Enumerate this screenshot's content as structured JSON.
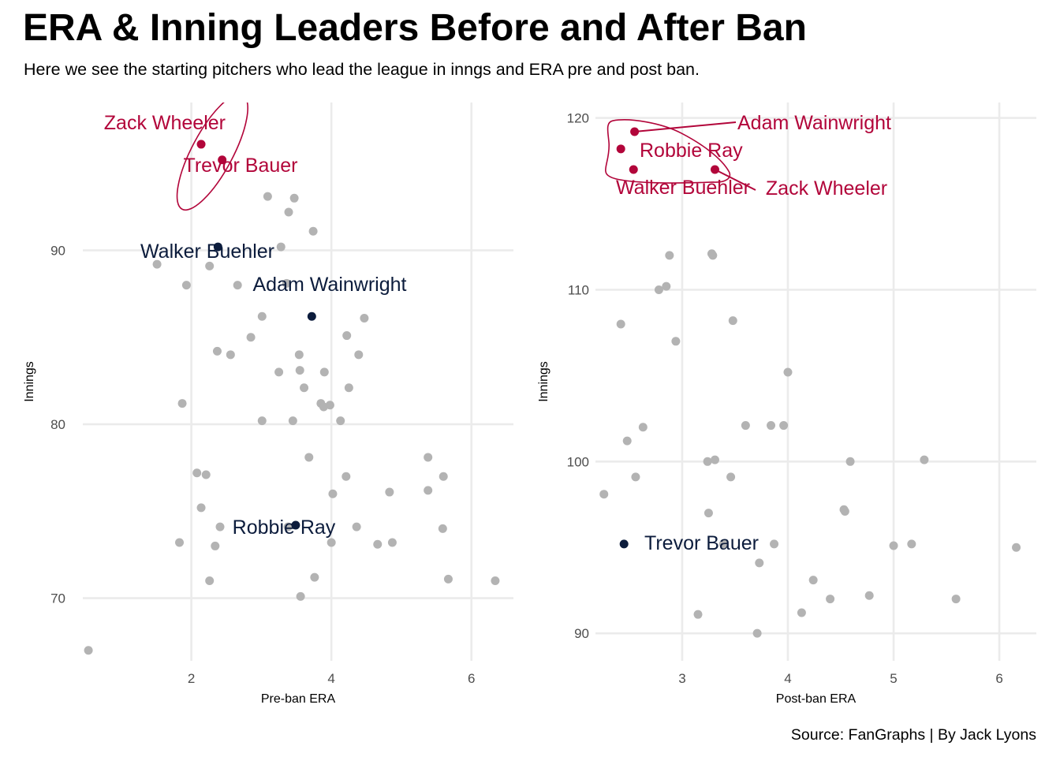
{
  "header": {
    "title": "ERA & Inning Leaders Before and After Ban",
    "subtitle": "Here we see the starting pitchers who lead the league in inngs and ERA pre and post ban."
  },
  "caption": "Source: FanGraphs | By Jack Lyons",
  "colors": {
    "highlight_red": "#b2053a",
    "highlight_navy": "#0c1c3c",
    "other": "#b3b3b3",
    "grid": "#ebebeb"
  },
  "chart_data": [
    {
      "type": "scatter",
      "panel": "left",
      "xlabel": "Pre-ban ERA",
      "ylabel": "Innings",
      "xlim": [
        0.45,
        6.6
      ],
      "ylim": [
        66.4,
        98.5
      ],
      "xticks": [
        2,
        4,
        6
      ],
      "yticks": [
        70,
        80,
        90
      ],
      "grid": true,
      "highlight": [
        {
          "name": "Zack Wheeler",
          "x": 2.14,
          "y": 96.1,
          "group": "red"
        },
        {
          "name": "Trevor Bauer",
          "x": 2.44,
          "y": 95.2,
          "group": "red"
        },
        {
          "name": "Walker Buehler",
          "x": 2.38,
          "y": 90.2,
          "group": "navy"
        },
        {
          "name": "Adam Wainwright",
          "x": 3.72,
          "y": 86.2,
          "group": "navy"
        },
        {
          "name": "Robbie Ray",
          "x": 3.49,
          "y": 74.2,
          "group": "navy"
        }
      ],
      "others": [
        [
          3.09,
          93.1
        ],
        [
          3.47,
          93.0
        ],
        [
          3.39,
          92.2
        ],
        [
          3.74,
          91.1
        ],
        [
          3.28,
          90.2
        ],
        [
          1.51,
          89.2
        ],
        [
          2.26,
          89.1
        ],
        [
          1.93,
          88.0
        ],
        [
          2.66,
          88.0
        ],
        [
          3.36,
          88.1
        ],
        [
          3.01,
          86.2
        ],
        [
          4.47,
          86.1
        ],
        [
          2.85,
          85.0
        ],
        [
          4.22,
          85.1
        ],
        [
          2.37,
          84.2
        ],
        [
          2.56,
          84.0
        ],
        [
          3.54,
          84.0
        ],
        [
          4.39,
          84.0
        ],
        [
          3.25,
          83.0
        ],
        [
          3.55,
          83.1
        ],
        [
          3.9,
          83.0
        ],
        [
          3.61,
          82.1
        ],
        [
          4.25,
          82.1
        ],
        [
          1.87,
          81.2
        ],
        [
          3.85,
          81.2
        ],
        [
          3.89,
          81.0
        ],
        [
          3.98,
          81.1
        ],
        [
          3.01,
          80.2
        ],
        [
          3.45,
          80.2
        ],
        [
          4.13,
          80.2
        ],
        [
          3.68,
          78.1
        ],
        [
          5.38,
          78.1
        ],
        [
          2.08,
          77.2
        ],
        [
          2.21,
          77.1
        ],
        [
          4.21,
          77.0
        ],
        [
          5.6,
          77.0
        ],
        [
          4.02,
          76.0
        ],
        [
          4.83,
          76.1
        ],
        [
          5.38,
          76.2
        ],
        [
          2.14,
          75.2
        ],
        [
          2.41,
          74.1
        ],
        [
          3.38,
          74.1
        ],
        [
          4.36,
          74.1
        ],
        [
          5.59,
          74.0
        ],
        [
          1.83,
          73.2
        ],
        [
          2.34,
          73.0
        ],
        [
          4.0,
          73.2
        ],
        [
          4.66,
          73.1
        ],
        [
          4.87,
          73.2
        ],
        [
          2.26,
          71.0
        ],
        [
          3.76,
          71.2
        ],
        [
          5.67,
          71.1
        ],
        [
          6.34,
          71.0
        ],
        [
          3.56,
          70.1
        ],
        [
          0.53,
          67.0
        ]
      ]
    },
    {
      "type": "scatter",
      "panel": "right",
      "xlabel": "Post-ban ERA",
      "ylabel": "Innings",
      "xlim": [
        2.18,
        6.35
      ],
      "ylim": [
        88.4,
        120.9
      ],
      "xticks": [
        3,
        4,
        5,
        6
      ],
      "yticks": [
        90,
        100,
        110,
        120
      ],
      "grid": true,
      "highlight": [
        {
          "name": "Adam Wainwright",
          "x": 2.55,
          "y": 119.2,
          "group": "red"
        },
        {
          "name": "Robbie Ray",
          "x": 2.42,
          "y": 118.2,
          "group": "red"
        },
        {
          "name": "Walker Buehler",
          "x": 2.54,
          "y": 117.0,
          "group": "red"
        },
        {
          "name": "Zack Wheeler",
          "x": 3.31,
          "y": 117.0,
          "group": "red"
        },
        {
          "name": "Trevor Bauer",
          "x": 2.45,
          "y": 95.2,
          "group": "navy"
        }
      ],
      "others": [
        [
          2.88,
          112.0
        ],
        [
          3.28,
          112.1
        ],
        [
          3.29,
          112.0
        ],
        [
          2.78,
          110.0
        ],
        [
          2.85,
          110.2
        ],
        [
          2.42,
          108.0
        ],
        [
          3.48,
          108.2
        ],
        [
          2.94,
          107.0
        ],
        [
          4.0,
          105.2
        ],
        [
          2.63,
          102.0
        ],
        [
          2.48,
          101.2
        ],
        [
          3.6,
          102.1
        ],
        [
          3.84,
          102.1
        ],
        [
          3.96,
          102.1
        ],
        [
          3.24,
          100.0
        ],
        [
          3.31,
          100.1
        ],
        [
          4.59,
          100.0
        ],
        [
          5.29,
          100.1
        ],
        [
          2.56,
          99.1
        ],
        [
          3.46,
          99.1
        ],
        [
          2.26,
          98.1
        ],
        [
          4.53,
          97.2
        ],
        [
          4.54,
          97.1
        ],
        [
          3.25,
          97.0
        ],
        [
          3.39,
          95.2
        ],
        [
          3.87,
          95.2
        ],
        [
          5.0,
          95.1
        ],
        [
          5.17,
          95.2
        ],
        [
          6.16,
          95.0
        ],
        [
          3.73,
          94.1
        ],
        [
          4.24,
          93.1
        ],
        [
          4.4,
          92.0
        ],
        [
          4.77,
          92.2
        ],
        [
          5.59,
          92.0
        ],
        [
          3.15,
          91.1
        ],
        [
          4.13,
          91.2
        ],
        [
          3.71,
          90.0
        ]
      ]
    }
  ]
}
